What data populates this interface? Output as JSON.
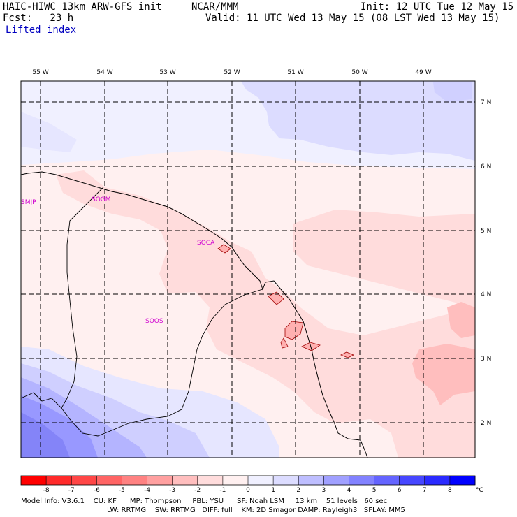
{
  "header": {
    "model": "HAIC-HIWC 13km ARW-GFS init",
    "center": "NCAR/MMM",
    "init": "Init: 12 UTC Tue 12 May 15",
    "fcst": "Fcst:   23 h",
    "valid": "Valid: 11 UTC Wed 13 May 15 (08 LST Wed 13 May 15)",
    "field": "Lifted index"
  },
  "lon_labels": [
    "55 W",
    "54 W",
    "53 W",
    "52 W",
    "51 W",
    "50 W",
    "49 W"
  ],
  "lat_labels": [
    "7 N",
    "6 N",
    "5 N",
    "4 N",
    "3 N",
    "2 N"
  ],
  "stations": [
    "SMJP",
    "SOGM",
    "SOCA",
    "SOOS"
  ],
  "colorbar": {
    "ticks": [
      "-8",
      "-7",
      "-6",
      "-5",
      "-4",
      "-3",
      "-2",
      "-1",
      "0",
      "1",
      "2",
      "3",
      "4",
      "5",
      "6",
      "7",
      "8"
    ],
    "unit": "°C",
    "colors": [
      "#ff0000",
      "#ff2a2a",
      "#ff4646",
      "#ff6464",
      "#ff8282",
      "#ffa0a0",
      "#ffbebe",
      "#ffdcdc",
      "#fff0f0",
      "#f0f0ff",
      "#dcdcff",
      "#bebeff",
      "#a0a0ff",
      "#8282ff",
      "#6464ff",
      "#4646ff",
      "#2a2aff",
      "#0000ff"
    ]
  },
  "footer": {
    "line1": "Model Info: V3.6.1    CU: KF      MP: Thompson     PBL: YSU      SF: Noah LSM     13 km    51 levels   60 sec",
    "line2": "LW: RRTMG    SW: RRTMG   DIFF: full    KM: 2D Smagor DAMP: Rayleigh3   SFLAY: MM5"
  }
}
